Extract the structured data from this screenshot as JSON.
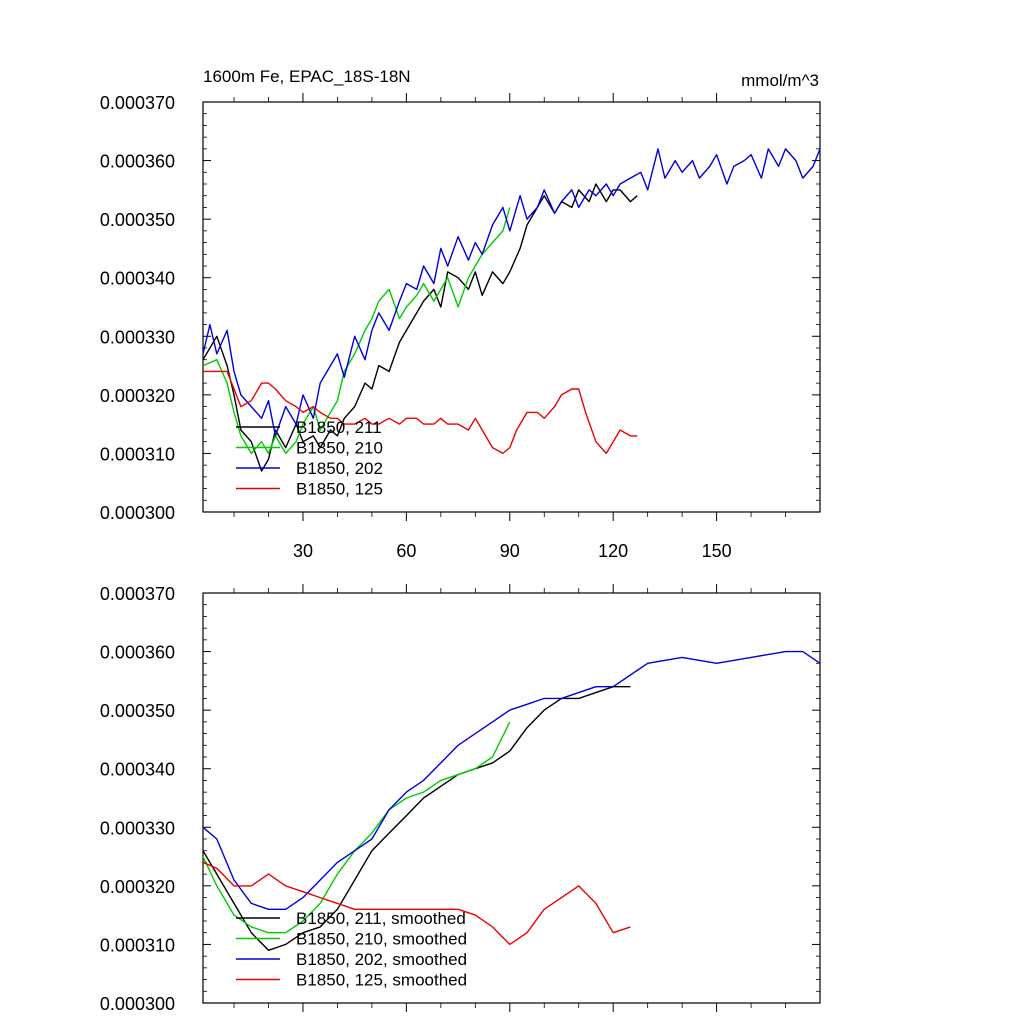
{
  "figure": {
    "title_left": "1600m Fe, EPAC_18S-18N",
    "title_right": "mmol/m^3"
  },
  "chart_data": [
    {
      "type": "line",
      "title": "1600m Fe, EPAC_18S-18N",
      "units": "mmol/m^3",
      "xlim": [
        1,
        180
      ],
      "ylim": [
        0.0003,
        0.00037
      ],
      "x_ticks": [
        30,
        60,
        90,
        120,
        150
      ],
      "x_tick_labels": [
        "30",
        "60",
        "90",
        "120",
        "150"
      ],
      "y_ticks": [
        0.0003,
        0.00031,
        0.00032,
        0.00033,
        0.00034,
        0.00035,
        0.00036,
        0.00037
      ],
      "y_tick_labels": [
        "0.000300",
        "0.000310",
        "0.000320",
        "0.000330",
        "0.000340",
        "0.000350",
        "0.000360",
        "0.000370"
      ],
      "legend_position": "bottom-left",
      "series": [
        {
          "name": "B1850, 211",
          "color": "#000000",
          "x": [
            1,
            5,
            8,
            10,
            12,
            15,
            18,
            20,
            22,
            25,
            28,
            30,
            33,
            35,
            38,
            40,
            42,
            45,
            48,
            50,
            52,
            55,
            58,
            60,
            63,
            65,
            68,
            70,
            72,
            75,
            78,
            80,
            82,
            85,
            88,
            90,
            93,
            95,
            98,
            100,
            103,
            105,
            108,
            110,
            113,
            115,
            118,
            120,
            122,
            125,
            127
          ],
          "y": [
            0.000326,
            0.00033,
            0.000325,
            0.00032,
            0.000314,
            0.000312,
            0.000307,
            0.000309,
            0.000314,
            0.000311,
            0.000315,
            0.000312,
            0.000313,
            0.000311,
            0.000314,
            0.000313,
            0.000316,
            0.000318,
            0.000322,
            0.000321,
            0.000325,
            0.000324,
            0.000329,
            0.000331,
            0.000334,
            0.000336,
            0.000338,
            0.000335,
            0.000341,
            0.00034,
            0.000338,
            0.000341,
            0.000337,
            0.000341,
            0.000339,
            0.000341,
            0.000345,
            0.000349,
            0.000352,
            0.000354,
            0.000351,
            0.000353,
            0.000352,
            0.000355,
            0.000353,
            0.000356,
            0.000353,
            0.000355,
            0.000355,
            0.000353,
            0.000354
          ]
        },
        {
          "name": "B1850, 210",
          "color": "#00cc00",
          "x": [
            1,
            5,
            8,
            10,
            12,
            15,
            18,
            20,
            22,
            25,
            28,
            30,
            33,
            35,
            38,
            40,
            42,
            45,
            48,
            50,
            52,
            55,
            58,
            60,
            63,
            65,
            68,
            70,
            72,
            75,
            78,
            80,
            82,
            85,
            88,
            90
          ],
          "y": [
            0.000325,
            0.000326,
            0.000322,
            0.000317,
            0.000313,
            0.00031,
            0.000312,
            0.00031,
            0.000313,
            0.00031,
            0.000312,
            0.000315,
            0.000318,
            0.000314,
            0.000317,
            0.000319,
            0.000324,
            0.000327,
            0.000331,
            0.000333,
            0.000336,
            0.000338,
            0.000333,
            0.000335,
            0.000337,
            0.000339,
            0.000336,
            0.000338,
            0.00034,
            0.000335,
            0.00034,
            0.000342,
            0.000344,
            0.000346,
            0.000348,
            0.000352
          ]
        },
        {
          "name": "B1850, 202",
          "color": "#0000dd",
          "x": [
            1,
            3,
            5,
            8,
            10,
            12,
            15,
            18,
            20,
            22,
            25,
            28,
            30,
            33,
            35,
            38,
            40,
            42,
            45,
            48,
            50,
            52,
            55,
            58,
            60,
            63,
            65,
            68,
            70,
            72,
            75,
            78,
            80,
            82,
            85,
            88,
            90,
            93,
            95,
            98,
            100,
            103,
            105,
            108,
            110,
            113,
            115,
            118,
            120,
            122,
            125,
            128,
            130,
            133,
            135,
            138,
            140,
            143,
            145,
            148,
            150,
            153,
            155,
            158,
            160,
            163,
            165,
            168,
            170,
            173,
            175,
            178,
            180
          ],
          "y": [
            0.000327,
            0.000332,
            0.000327,
            0.000331,
            0.000324,
            0.00032,
            0.000318,
            0.000316,
            0.000319,
            0.000313,
            0.000318,
            0.000315,
            0.00032,
            0.000316,
            0.000322,
            0.000325,
            0.000327,
            0.000323,
            0.00033,
            0.000326,
            0.000331,
            0.000334,
            0.000331,
            0.000336,
            0.000339,
            0.000338,
            0.000342,
            0.000339,
            0.000345,
            0.000342,
            0.000347,
            0.000343,
            0.000346,
            0.000344,
            0.000349,
            0.000352,
            0.000348,
            0.000354,
            0.00035,
            0.000352,
            0.000355,
            0.000351,
            0.000353,
            0.000355,
            0.000352,
            0.000355,
            0.000354,
            0.000356,
            0.000354,
            0.000356,
            0.000357,
            0.000358,
            0.000355,
            0.000362,
            0.000357,
            0.00036,
            0.000358,
            0.00036,
            0.000357,
            0.000359,
            0.000361,
            0.000356,
            0.000359,
            0.00036,
            0.000361,
            0.000357,
            0.000362,
            0.000359,
            0.000362,
            0.00036,
            0.000357,
            0.000359,
            0.000362
          ]
        },
        {
          "name": "B1850, 125",
          "color": "#ee0000",
          "x": [
            1,
            5,
            8,
            10,
            12,
            15,
            18,
            20,
            22,
            25,
            28,
            30,
            33,
            35,
            38,
            40,
            42,
            45,
            48,
            50,
            52,
            55,
            58,
            60,
            63,
            65,
            68,
            70,
            72,
            75,
            78,
            80,
            82,
            85,
            88,
            90,
            92,
            95,
            98,
            100,
            103,
            105,
            108,
            110,
            112,
            115,
            118,
            120,
            122,
            125,
            127
          ],
          "y": [
            0.000324,
            0.000324,
            0.000324,
            0.000321,
            0.000318,
            0.000319,
            0.000322,
            0.000322,
            0.000321,
            0.000319,
            0.000318,
            0.000317,
            0.000318,
            0.000317,
            0.000316,
            0.000316,
            0.000315,
            0.000315,
            0.000316,
            0.000315,
            0.000315,
            0.000316,
            0.000315,
            0.000316,
            0.000316,
            0.000315,
            0.000315,
            0.000316,
            0.000315,
            0.000315,
            0.000314,
            0.000316,
            0.000314,
            0.000311,
            0.00031,
            0.000311,
            0.000314,
            0.000317,
            0.000317,
            0.000316,
            0.000318,
            0.00032,
            0.000321,
            0.000321,
            0.000317,
            0.000312,
            0.00031,
            0.000312,
            0.000314,
            0.000313,
            0.000313
          ]
        }
      ]
    },
    {
      "type": "line",
      "title": "",
      "xlim": [
        1,
        180
      ],
      "ylim": [
        0.0003,
        0.00037
      ],
      "x_ticks": [
        30,
        60,
        90,
        120,
        150
      ],
      "y_ticks": [
        0.0003,
        0.00031,
        0.00032,
        0.00033,
        0.00034,
        0.00035,
        0.00036,
        0.00037
      ],
      "y_tick_labels": [
        "0.000300",
        "0.000310",
        "0.000320",
        "0.000330",
        "0.000340",
        "0.000350",
        "0.000360",
        "0.000370"
      ],
      "legend_position": "bottom-left",
      "series": [
        {
          "name": "B1850, 211, smoothed",
          "color": "#000000",
          "x": [
            1,
            5,
            10,
            15,
            20,
            25,
            30,
            35,
            40,
            45,
            50,
            55,
            60,
            65,
            70,
            75,
            80,
            85,
            90,
            95,
            100,
            105,
            110,
            115,
            120,
            125
          ],
          "y": [
            0.000326,
            0.000322,
            0.000317,
            0.000312,
            0.000309,
            0.00031,
            0.000312,
            0.000313,
            0.000316,
            0.000321,
            0.000326,
            0.000329,
            0.000332,
            0.000335,
            0.000337,
            0.000339,
            0.00034,
            0.000341,
            0.000343,
            0.000347,
            0.00035,
            0.000352,
            0.000352,
            0.000353,
            0.000354,
            0.000354
          ]
        },
        {
          "name": "B1850, 210, smoothed",
          "color": "#00cc00",
          "x": [
            1,
            5,
            10,
            15,
            20,
            25,
            30,
            35,
            40,
            45,
            50,
            55,
            60,
            65,
            70,
            75,
            80,
            85,
            90
          ],
          "y": [
            0.000325,
            0.00032,
            0.000315,
            0.000313,
            0.000312,
            0.000312,
            0.000314,
            0.000317,
            0.000322,
            0.000326,
            0.000329,
            0.000333,
            0.000335,
            0.000336,
            0.000338,
            0.000339,
            0.00034,
            0.000342,
            0.000348
          ]
        },
        {
          "name": "B1850, 202, smoothed",
          "color": "#0000dd",
          "x": [
            1,
            5,
            10,
            15,
            20,
            25,
            30,
            35,
            40,
            45,
            50,
            55,
            60,
            65,
            70,
            75,
            80,
            85,
            90,
            95,
            100,
            105,
            110,
            115,
            120,
            125,
            130,
            140,
            150,
            160,
            170,
            175,
            180
          ],
          "y": [
            0.00033,
            0.000328,
            0.000321,
            0.000317,
            0.000316,
            0.000316,
            0.000318,
            0.000321,
            0.000324,
            0.000326,
            0.000328,
            0.000333,
            0.000336,
            0.000338,
            0.000341,
            0.000344,
            0.000346,
            0.000348,
            0.00035,
            0.000351,
            0.000352,
            0.000352,
            0.000353,
            0.000354,
            0.000354,
            0.000356,
            0.000358,
            0.000359,
            0.000358,
            0.000359,
            0.00036,
            0.00036,
            0.000358
          ]
        },
        {
          "name": "B1850, 125, smoothed",
          "color": "#ee0000",
          "x": [
            1,
            5,
            10,
            15,
            20,
            25,
            30,
            35,
            40,
            45,
            50,
            55,
            60,
            65,
            70,
            75,
            80,
            85,
            90,
            95,
            100,
            105,
            110,
            115,
            120,
            125
          ],
          "y": [
            0.000324,
            0.000323,
            0.00032,
            0.00032,
            0.000322,
            0.00032,
            0.000319,
            0.000318,
            0.000317,
            0.000316,
            0.000316,
            0.000316,
            0.000316,
            0.000316,
            0.000316,
            0.000316,
            0.000315,
            0.000313,
            0.00031,
            0.000312,
            0.000316,
            0.000318,
            0.00032,
            0.000317,
            0.000312,
            0.000313
          ]
        }
      ]
    }
  ]
}
